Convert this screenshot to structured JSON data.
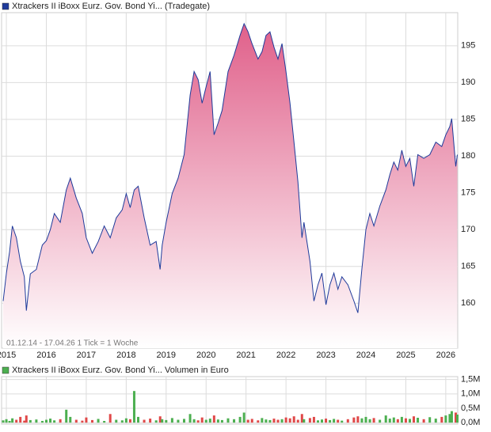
{
  "chart_data": [
    {
      "type": "area",
      "annotation": "01.12.14 - 17.04.26   1 Tick = 1 Woche",
      "x": [
        2014.92,
        2015.0,
        2015.08,
        2015.15,
        2015.25,
        2015.35,
        2015.45,
        2015.5,
        2015.6,
        2015.75,
        2015.9,
        2016.0,
        2016.1,
        2016.2,
        2016.35,
        2016.5,
        2016.6,
        2016.75,
        2016.9,
        2017.0,
        2017.15,
        2017.3,
        2017.45,
        2017.6,
        2017.75,
        2017.9,
        2018.0,
        2018.1,
        2018.2,
        2018.3,
        2018.45,
        2018.6,
        2018.75,
        2018.85,
        2018.9,
        2019.0,
        2019.15,
        2019.3,
        2019.45,
        2019.6,
        2019.7,
        2019.8,
        2019.9,
        2020.0,
        2020.1,
        2020.2,
        2020.3,
        2020.4,
        2020.55,
        2020.7,
        2020.85,
        2020.95,
        2021.05,
        2021.15,
        2021.3,
        2021.4,
        2021.5,
        2021.6,
        2021.7,
        2021.8,
        2021.9,
        2022.0,
        2022.1,
        2022.2,
        2022.3,
        2022.4,
        2022.45,
        2022.6,
        2022.7,
        2022.8,
        2022.9,
        2023.0,
        2023.1,
        2023.2,
        2023.3,
        2023.4,
        2023.55,
        2023.7,
        2023.8,
        2023.9,
        2024.0,
        2024.1,
        2024.2,
        2024.35,
        2024.5,
        2024.6,
        2024.7,
        2024.8,
        2024.9,
        2025.0,
        2025.1,
        2025.2,
        2025.3,
        2025.45,
        2025.6,
        2025.75,
        2025.9,
        2026.0,
        2026.1,
        2026.15,
        2026.25,
        2026.29
      ],
      "series": [
        {
          "name": "Xtrackers II iBoxx Eurz. Gov. Bond Yi... (Tradegate)",
          "color": "#1f3b9b",
          "values": [
            160.3,
            164.1,
            167,
            170.5,
            168.9,
            165.7,
            163.6,
            159,
            164,
            164.6,
            167.9,
            168.5,
            170,
            172.2,
            171,
            175.4,
            177,
            174.3,
            172.2,
            168.9,
            166.8,
            168.4,
            170.5,
            168.9,
            171.6,
            172.7,
            174.9,
            173,
            175.4,
            175.9,
            171.6,
            167.9,
            168.4,
            164.6,
            167.9,
            171,
            174.9,
            177,
            180.2,
            188.3,
            191.5,
            190.4,
            187.2,
            189.4,
            191.5,
            182.9,
            184.5,
            186.2,
            191.5,
            193.7,
            196.4,
            198,
            196.9,
            195.3,
            193.2,
            194.2,
            196.4,
            196.9,
            194.8,
            193.2,
            195.3,
            191.5,
            187.2,
            181.9,
            176.5,
            168.9,
            171,
            165.7,
            160.3,
            162.5,
            164.1,
            159.8,
            162.5,
            164.1,
            161.9,
            163.6,
            162.5,
            160.3,
            158.7,
            164.6,
            170,
            172.2,
            170.5,
            173.2,
            175.4,
            177.5,
            179.2,
            178.1,
            180.8,
            178.6,
            179.7,
            175.9,
            180.2,
            179.7,
            180.2,
            181.9,
            181.3,
            182.9,
            184,
            185.1,
            178.6,
            180.2
          ]
        }
      ],
      "area_color": "#e0608a",
      "xlim": [
        2014.88,
        2026.3
      ],
      "xticks": [
        2015,
        2016,
        2017,
        2018,
        2019,
        2020,
        2021,
        2022,
        2023,
        2024,
        2025,
        2026
      ],
      "ylim": [
        153.9,
        199.5
      ],
      "yticks": [
        160,
        165,
        170,
        175,
        180,
        185,
        190,
        195
      ],
      "grid": true
    },
    {
      "type": "bar",
      "x": [
        2014.92,
        2015.0,
        2015.08,
        2015.15,
        2015.25,
        2015.35,
        2015.45,
        2015.5,
        2015.6,
        2015.75,
        2015.9,
        2016.0,
        2016.1,
        2016.2,
        2016.35,
        2016.5,
        2016.6,
        2016.75,
        2016.9,
        2017.0,
        2017.15,
        2017.3,
        2017.45,
        2017.6,
        2017.75,
        2017.9,
        2018.0,
        2018.1,
        2018.2,
        2018.3,
        2018.45,
        2018.6,
        2018.75,
        2018.85,
        2018.9,
        2019.0,
        2019.15,
        2019.3,
        2019.45,
        2019.6,
        2019.7,
        2019.8,
        2019.9,
        2020.0,
        2020.1,
        2020.2,
        2020.3,
        2020.4,
        2020.55,
        2020.7,
        2020.85,
        2020.95,
        2021.05,
        2021.15,
        2021.3,
        2021.4,
        2021.5,
        2021.6,
        2021.7,
        2021.8,
        2021.9,
        2022.0,
        2022.1,
        2022.2,
        2022.3,
        2022.4,
        2022.45,
        2022.6,
        2022.7,
        2022.8,
        2022.9,
        2023.0,
        2023.1,
        2023.2,
        2023.3,
        2023.4,
        2023.55,
        2023.7,
        2023.8,
        2023.9,
        2024.0,
        2024.1,
        2024.2,
        2024.35,
        2024.5,
        2024.6,
        2024.7,
        2024.8,
        2024.9,
        2025.0,
        2025.1,
        2025.2,
        2025.3,
        2025.45,
        2025.6,
        2025.75,
        2025.9,
        2026.0,
        2026.1,
        2026.15,
        2026.25,
        2026.29
      ],
      "series": [
        {
          "name": "Xtrackers II iBoxx Eurz. Gov. Bond Yi... Volumen in Euro",
          "color": "#4caf50",
          "values": [
            0.08,
            0.12,
            0.06,
            0.15,
            0.1,
            0.2,
            0.07,
            0.25,
            0.09,
            0.11,
            0.06,
            0.1,
            0.14,
            0.08,
            0.12,
            0.45,
            0.2,
            0.1,
            0.07,
            0.18,
            0.09,
            0.13,
            0.06,
            0.3,
            0.1,
            0.08,
            0.15,
            0.12,
            1.1,
            0.2,
            0.1,
            0.14,
            0.08,
            0.22,
            0.12,
            0.09,
            0.16,
            0.1,
            0.13,
            0.3,
            0.12,
            0.08,
            0.18,
            0.1,
            0.14,
            0.25,
            0.11,
            0.09,
            0.15,
            0.12,
            0.2,
            0.35,
            0.1,
            0.13,
            0.08,
            0.16,
            0.11,
            0.09,
            0.14,
            0.1,
            0.12,
            0.18,
            0.15,
            0.22,
            0.1,
            0.3,
            0.12,
            0.16,
            0.2,
            0.08,
            0.11,
            0.14,
            0.09,
            0.13,
            0.1,
            0.07,
            0.12,
            0.18,
            0.22,
            0.15,
            0.2,
            0.12,
            0.16,
            0.1,
            0.25,
            0.14,
            0.18,
            0.12,
            0.2,
            0.15,
            0.13,
            0.22,
            0.17,
            0.12,
            0.19,
            0.14,
            0.2,
            0.25,
            0.3,
            0.4,
            0.35,
            0.28
          ]
        }
      ],
      "down_color": "#e04848",
      "xlim": [
        2014.88,
        2026.3
      ],
      "xticks": [
        2015,
        2016,
        2017,
        2018,
        2019,
        2020,
        2021,
        2022,
        2023,
        2024,
        2025,
        2026
      ],
      "ylim": [
        -0.05,
        1.6
      ],
      "yticks": [
        {
          "value": 0,
          "label": "0,0M"
        },
        {
          "value": 0.5,
          "label": "0,5M"
        },
        {
          "value": 1.0,
          "label": "1,0M"
        },
        {
          "value": 1.5,
          "label": "1,5M"
        }
      ],
      "grid": true
    }
  ]
}
